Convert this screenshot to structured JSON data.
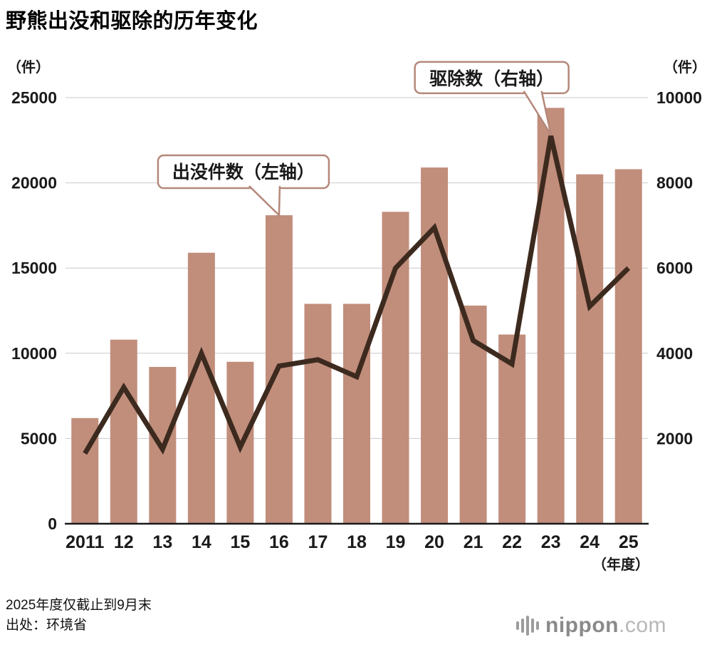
{
  "title": "野熊出没和驱除的历年变化",
  "notes": {
    "note1": "2025年度仅截止到9月末",
    "source": "出处：环境省"
  },
  "logo": {
    "name": "nippon",
    "tld": ".com"
  },
  "chart_data": {
    "type": "combo",
    "title": "野熊出没和驱除的历年变化",
    "categories": [
      "2011",
      "12",
      "13",
      "14",
      "15",
      "16",
      "17",
      "18",
      "19",
      "20",
      "21",
      "22",
      "23",
      "24",
      "25"
    ],
    "series": [
      {
        "name": "出没件数（左轴）",
        "type": "bar",
        "axis": "left",
        "color": "#c18e7c",
        "values": [
          6200,
          10800,
          9200,
          15900,
          9500,
          18100,
          12900,
          12900,
          18300,
          20900,
          12800,
          11100,
          24400,
          20500,
          20800
        ]
      },
      {
        "name": "驱除数（右轴）",
        "type": "line",
        "axis": "right",
        "color": "#3d2a1f",
        "values": [
          1650,
          3200,
          1750,
          4000,
          1800,
          3700,
          3850,
          3450,
          6000,
          6950,
          4300,
          3750,
          9100,
          5100,
          6000
        ]
      }
    ],
    "left_axis": {
      "unit": "（件）",
      "min": 0,
      "max": 25000,
      "ticks": [
        0,
        5000,
        10000,
        15000,
        20000,
        25000
      ]
    },
    "right_axis": {
      "unit": "（件）",
      "min": 0,
      "max": 10000,
      "ticks": [
        2000,
        4000,
        6000,
        8000,
        10000
      ]
    },
    "x_axis_suffix": "（年度）",
    "grid": "horizontal",
    "legend": "none",
    "annotations": [
      {
        "label": "出没件数（左轴）",
        "series": "bar",
        "target_category": "16"
      },
      {
        "label": "驱除数（右轴）",
        "series": "line",
        "target_category": "23"
      }
    ],
    "colors": {
      "grid": "#c9c9c9",
      "axis_line": "#1a1a1a",
      "callout_border": "#b5887a",
      "text": "#1a1a1a"
    }
  }
}
